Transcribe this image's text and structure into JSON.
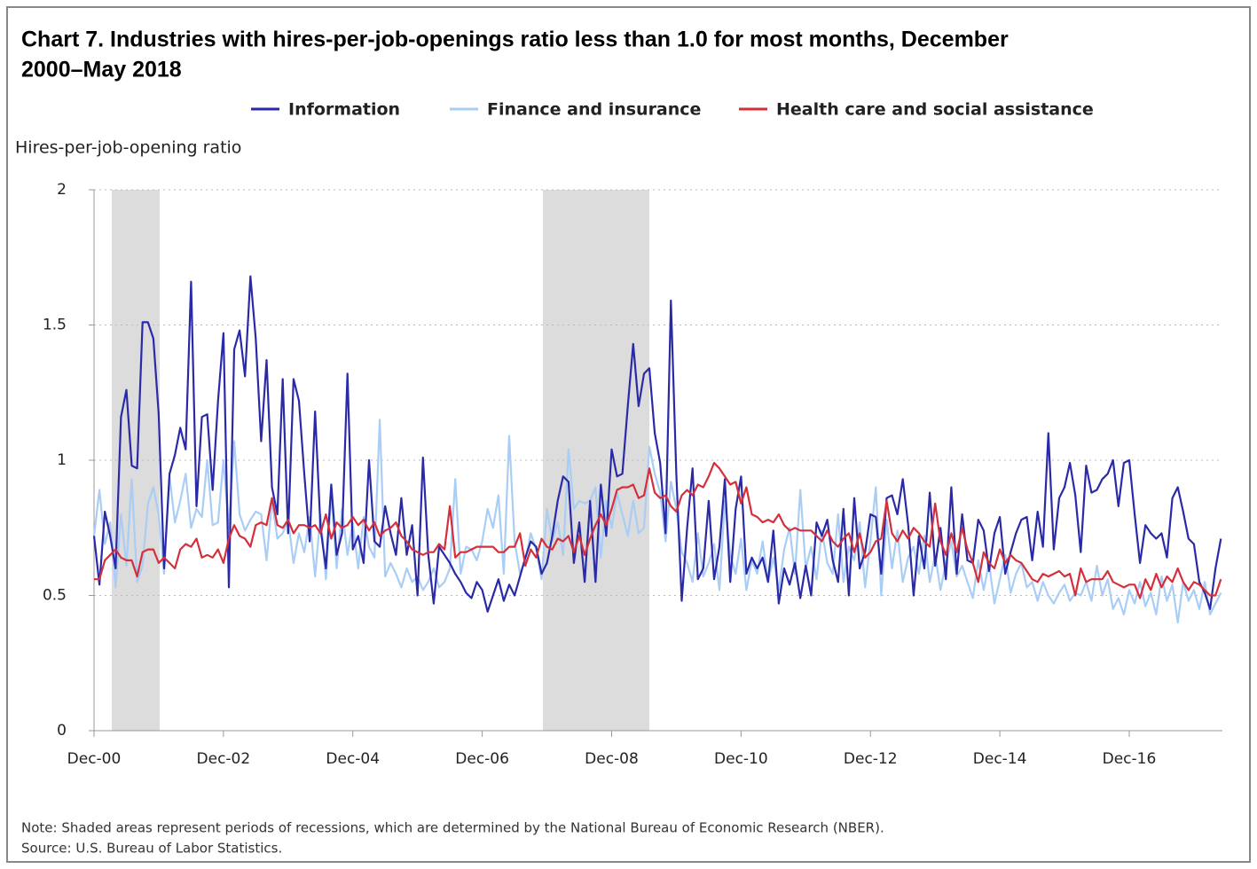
{
  "chart_data": {
    "type": "line",
    "title_lines": [
      "Chart 7. Industries with hires-per-job-openings ratio less than 1.0 for most months, December",
      "2000–May 2018"
    ],
    "y_label": "Hires-per-job-opening ratio",
    "notes": [
      "Note: Shaded areas represent periods of recessions, which are determined by the National Bureau of Economic Research (NBER).",
      "Source: U.S. Bureau of Labor Statistics."
    ],
    "categories": [
      "Dec-00",
      null,
      null,
      null,
      null,
      null,
      null,
      null,
      null,
      null,
      null,
      null,
      null,
      null,
      null,
      null,
      null,
      null,
      null,
      null,
      null,
      null,
      null,
      null,
      "Dec-02",
      null,
      null,
      null,
      null,
      null,
      null,
      null,
      null,
      null,
      null,
      null,
      null,
      null,
      null,
      null,
      null,
      null,
      null,
      null,
      null,
      null,
      null,
      null,
      "Dec-04",
      null,
      null,
      null,
      null,
      null,
      null,
      null,
      null,
      null,
      null,
      null,
      null,
      null,
      null,
      null,
      null,
      null,
      null,
      null,
      null,
      null,
      null,
      null,
      "Dec-06",
      null,
      null,
      null,
      null,
      null,
      null,
      null,
      null,
      null,
      null,
      null,
      null,
      null,
      null,
      null,
      null,
      null,
      null,
      null,
      null,
      null,
      null,
      null,
      "Dec-08",
      null,
      null,
      null,
      null,
      null,
      null,
      null,
      null,
      null,
      null,
      null,
      null,
      null,
      null,
      null,
      null,
      null,
      null,
      null,
      null,
      null,
      null,
      null,
      "Dec-10",
      null,
      null,
      null,
      null,
      null,
      null,
      null,
      null,
      null,
      null,
      null,
      null,
      null,
      null,
      null,
      null,
      null,
      null,
      null,
      null,
      null,
      null,
      null,
      "Dec-12",
      null,
      null,
      null,
      null,
      null,
      null,
      null,
      null,
      null,
      null,
      null,
      null,
      null,
      null,
      null,
      null,
      null,
      null,
      null,
      null,
      null,
      null,
      null,
      "Dec-14",
      null,
      null,
      null,
      null,
      null,
      null,
      null,
      null,
      null,
      null,
      null,
      null,
      null,
      null,
      null,
      null,
      null,
      null,
      null,
      null,
      null,
      null,
      null,
      "Dec-16",
      null,
      null,
      null,
      null,
      null,
      null,
      null,
      null,
      null,
      null,
      null,
      null,
      null,
      null,
      null,
      null,
      null
    ],
    "series": [
      {
        "name": "Information",
        "color": "#2a2aa8",
        "values": [
          0.72,
          0.54,
          0.81,
          0.72,
          0.6,
          1.16,
          1.26,
          0.98,
          0.97,
          1.51,
          1.51,
          1.45,
          1.17,
          0.6,
          0.95,
          1.02,
          1.12,
          1.04,
          1.66,
          0.83,
          1.16,
          1.17,
          0.89,
          1.22,
          1.47,
          0.53,
          1.41,
          1.48,
          1.31,
          1.68,
          1.45,
          1.07,
          1.37,
          0.9,
          0.8,
          1.3,
          0.73,
          1.3,
          1.22,
          0.95,
          0.7,
          1.18,
          0.75,
          0.6,
          0.91,
          0.65,
          0.73,
          1.32,
          0.67,
          0.72,
          0.62,
          1.0,
          0.7,
          0.68,
          0.83,
          0.73,
          0.65,
          0.86,
          0.65,
          0.76,
          0.5,
          1.01,
          0.65,
          0.47,
          0.68,
          0.65,
          0.62,
          0.58,
          0.55,
          0.51,
          0.49,
          0.55,
          0.52,
          0.44,
          0.5,
          0.56,
          0.48,
          0.54,
          0.5,
          0.57,
          0.64,
          0.7,
          0.68,
          0.58,
          0.62,
          0.72,
          0.85,
          0.94,
          0.92,
          0.62,
          0.77,
          0.55,
          0.85,
          0.55,
          0.91,
          0.72,
          1.04,
          0.94,
          0.95,
          1.2,
          1.43,
          1.2,
          1.32,
          1.34,
          1.1,
          0.99,
          0.73,
          1.59,
          0.95,
          0.48,
          0.75,
          0.97,
          0.56,
          0.6,
          0.85,
          0.56,
          0.68,
          0.93,
          0.55,
          0.82,
          0.94,
          0.58,
          0.64,
          0.6,
          0.64,
          0.55,
          0.74,
          0.47,
          0.6,
          0.54,
          0.62,
          0.49,
          0.61,
          0.5,
          0.77,
          0.72,
          0.78,
          0.63,
          0.55,
          0.82,
          0.5,
          0.86,
          0.6,
          0.66,
          0.8,
          0.79,
          0.58,
          0.86,
          0.87,
          0.8,
          0.93,
          0.76,
          0.5,
          0.72,
          0.6,
          0.88,
          0.61,
          0.75,
          0.56,
          0.9,
          0.58,
          0.8,
          0.63,
          0.62,
          0.78,
          0.74,
          0.59,
          0.73,
          0.79,
          0.58,
          0.66,
          0.73,
          0.78,
          0.79,
          0.63,
          0.81,
          0.68,
          1.1,
          0.67,
          0.86,
          0.9,
          0.99,
          0.87,
          0.66,
          0.98,
          0.88,
          0.89,
          0.93,
          0.95,
          1.0,
          0.83,
          0.99,
          1.0,
          0.8,
          0.62,
          0.76,
          0.73,
          0.71,
          0.73,
          0.64,
          0.86,
          0.9,
          0.81,
          0.71,
          0.69,
          0.55,
          0.51,
          0.45,
          0.6,
          0.71
        ]
      },
      {
        "name": "Finance and insurance",
        "color": "#a9cdf5",
        "values": [
          0.72,
          0.89,
          0.69,
          0.77,
          0.53,
          0.8,
          0.61,
          0.93,
          0.55,
          0.61,
          0.84,
          0.9,
          0.8,
          0.58,
          0.94,
          0.77,
          0.85,
          0.95,
          0.75,
          0.82,
          0.79,
          1.0,
          0.76,
          0.77,
          1.0,
          0.75,
          1.07,
          0.8,
          0.74,
          0.78,
          0.81,
          0.8,
          0.63,
          0.85,
          0.71,
          0.73,
          0.78,
          0.62,
          0.73,
          0.66,
          0.79,
          0.57,
          0.8,
          0.56,
          0.88,
          0.6,
          0.82,
          0.65,
          0.77,
          0.6,
          0.79,
          0.68,
          0.64,
          1.15,
          0.57,
          0.62,
          0.58,
          0.53,
          0.6,
          0.55,
          0.57,
          0.52,
          0.55,
          0.6,
          0.53,
          0.55,
          0.6,
          0.93,
          0.58,
          0.68,
          0.67,
          0.63,
          0.7,
          0.82,
          0.75,
          0.87,
          0.58,
          1.09,
          0.7,
          0.58,
          0.63,
          0.73,
          0.67,
          0.56,
          0.82,
          0.7,
          0.77,
          0.65,
          1.04,
          0.82,
          0.85,
          0.84,
          0.85,
          0.9,
          0.64,
          0.85,
          0.75,
          0.88,
          0.8,
          0.72,
          0.85,
          0.73,
          0.75,
          1.05,
          0.95,
          0.88,
          0.7,
          0.92,
          0.82,
          0.66,
          0.62,
          0.55,
          0.73,
          0.57,
          0.62,
          0.69,
          0.52,
          0.85,
          0.65,
          0.58,
          0.71,
          0.52,
          0.63,
          0.58,
          0.7,
          0.55,
          0.64,
          0.52,
          0.67,
          0.75,
          0.58,
          0.89,
          0.6,
          0.68,
          0.56,
          0.74,
          0.62,
          0.58,
          0.8,
          0.55,
          0.68,
          0.63,
          0.77,
          0.53,
          0.7,
          0.9,
          0.5,
          0.78,
          0.6,
          0.74,
          0.55,
          0.64,
          0.68,
          0.58,
          0.72,
          0.55,
          0.65,
          0.52,
          0.62,
          0.7,
          0.57,
          0.61,
          0.55,
          0.49,
          0.63,
          0.52,
          0.62,
          0.47,
          0.56,
          0.65,
          0.51,
          0.58,
          0.62,
          0.53,
          0.55,
          0.48,
          0.55,
          0.5,
          0.47,
          0.51,
          0.54,
          0.48,
          0.51,
          0.5,
          0.55,
          0.48,
          0.61,
          0.5,
          0.56,
          0.45,
          0.49,
          0.43,
          0.52,
          0.47,
          0.55,
          0.46,
          0.51,
          0.43,
          0.57,
          0.48,
          0.54,
          0.4,
          0.55,
          0.48,
          0.52,
          0.45,
          0.55,
          0.43,
          0.47,
          0.51
        ]
      },
      {
        "name": "Health care and social assistance",
        "color": "#d42f3a",
        "values": [
          0.56,
          0.56,
          0.63,
          0.65,
          0.67,
          0.64,
          0.63,
          0.63,
          0.57,
          0.66,
          0.67,
          0.67,
          0.62,
          0.64,
          0.62,
          0.6,
          0.67,
          0.69,
          0.68,
          0.71,
          0.64,
          0.65,
          0.64,
          0.67,
          0.62,
          0.71,
          0.76,
          0.72,
          0.71,
          0.68,
          0.76,
          0.77,
          0.76,
          0.86,
          0.76,
          0.75,
          0.78,
          0.73,
          0.76,
          0.76,
          0.75,
          0.76,
          0.73,
          0.8,
          0.71,
          0.77,
          0.75,
          0.76,
          0.79,
          0.76,
          0.78,
          0.74,
          0.77,
          0.72,
          0.74,
          0.75,
          0.77,
          0.72,
          0.7,
          0.67,
          0.66,
          0.65,
          0.66,
          0.66,
          0.69,
          0.67,
          0.83,
          0.64,
          0.66,
          0.66,
          0.67,
          0.68,
          0.68,
          0.68,
          0.68,
          0.66,
          0.66,
          0.68,
          0.68,
          0.73,
          0.61,
          0.67,
          0.64,
          0.71,
          0.68,
          0.67,
          0.71,
          0.7,
          0.72,
          0.66,
          0.72,
          0.65,
          0.71,
          0.76,
          0.8,
          0.76,
          0.82,
          0.89,
          0.9,
          0.9,
          0.91,
          0.86,
          0.87,
          0.97,
          0.88,
          0.86,
          0.87,
          0.83,
          0.81,
          0.87,
          0.89,
          0.87,
          0.91,
          0.9,
          0.94,
          0.99,
          0.97,
          0.94,
          0.91,
          0.92,
          0.84,
          0.9,
          0.8,
          0.79,
          0.77,
          0.78,
          0.77,
          0.8,
          0.76,
          0.74,
          0.75,
          0.74,
          0.74,
          0.74,
          0.72,
          0.7,
          0.74,
          0.7,
          0.68,
          0.71,
          0.73,
          0.66,
          0.73,
          0.64,
          0.66,
          0.7,
          0.71,
          0.85,
          0.73,
          0.7,
          0.74,
          0.71,
          0.75,
          0.73,
          0.7,
          0.68,
          0.84,
          0.7,
          0.65,
          0.73,
          0.66,
          0.75,
          0.67,
          0.62,
          0.55,
          0.66,
          0.62,
          0.6,
          0.67,
          0.62,
          0.65,
          0.63,
          0.62,
          0.59,
          0.56,
          0.55,
          0.58,
          0.57,
          0.58,
          0.59,
          0.57,
          0.58,
          0.5,
          0.6,
          0.55,
          0.56,
          0.56,
          0.56,
          0.59,
          0.55,
          0.54,
          0.53,
          0.54,
          0.54,
          0.49,
          0.56,
          0.52,
          0.58,
          0.53,
          0.57,
          0.55,
          0.6,
          0.55,
          0.52,
          0.55,
          0.54,
          0.52,
          0.5,
          0.5,
          0.56
        ]
      }
    ],
    "ylim": [
      0,
      2
    ],
    "yticks": [
      0,
      0.5,
      1,
      1.5,
      2
    ],
    "grid": true,
    "legend": "top"
  }
}
